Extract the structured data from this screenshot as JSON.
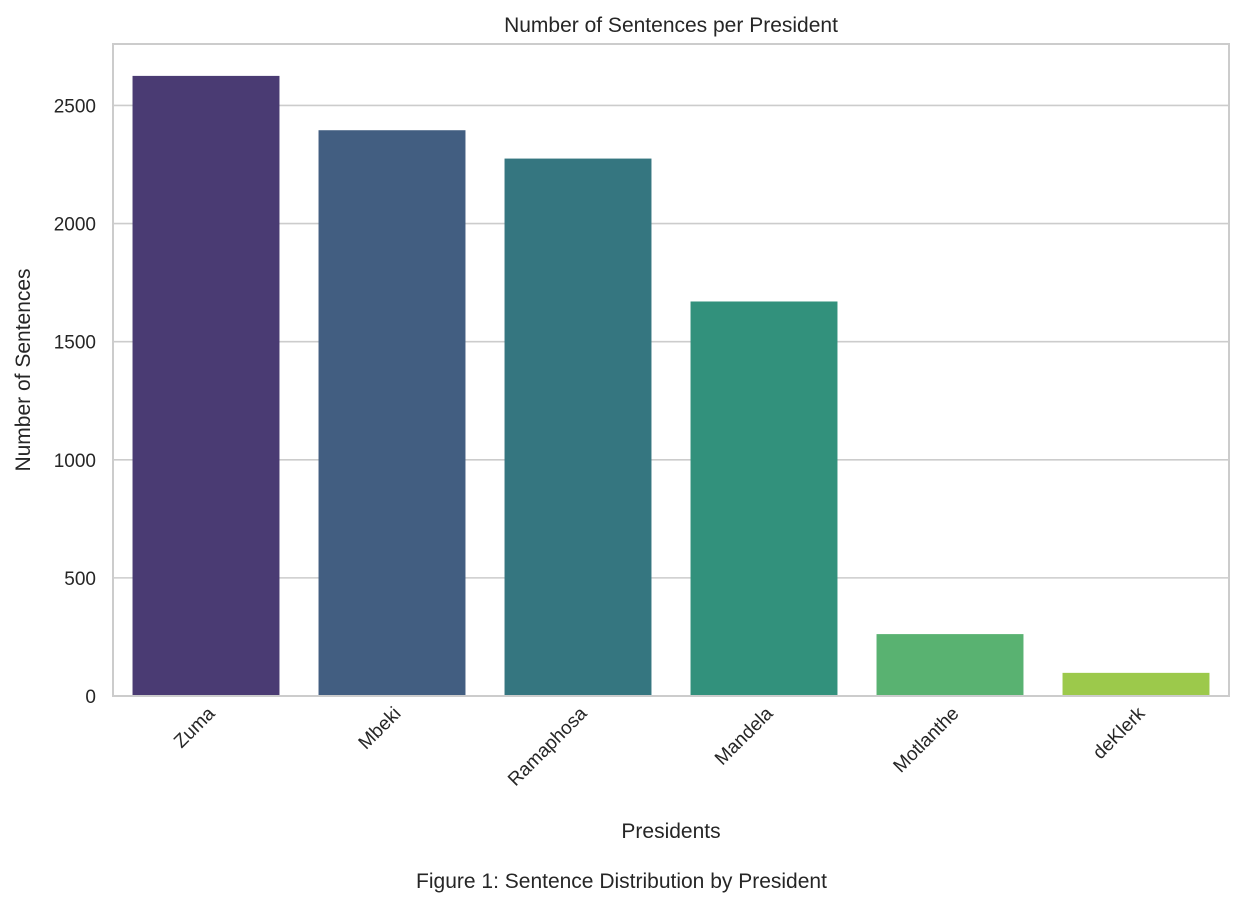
{
  "chart_data": {
    "type": "bar",
    "title": "Number of Sentences per President",
    "xlabel": "Presidents",
    "ylabel": "Number of Sentences",
    "categories": [
      "Zuma",
      "Mbeki",
      "Ramaphosa",
      "Mandela",
      "Motlanthe",
      "deKlerk"
    ],
    "values": [
      2625,
      2395,
      2275,
      1670,
      262,
      98
    ],
    "colors": [
      "#4a3b73",
      "#425e81",
      "#357680",
      "#32917c",
      "#59b271",
      "#9cc94b"
    ],
    "ylim": [
      0,
      2760
    ],
    "yticks": [
      0,
      500,
      1000,
      1500,
      2000,
      2500
    ],
    "grid": true
  },
  "caption": "Figure 1: Sentence Distribution by President"
}
